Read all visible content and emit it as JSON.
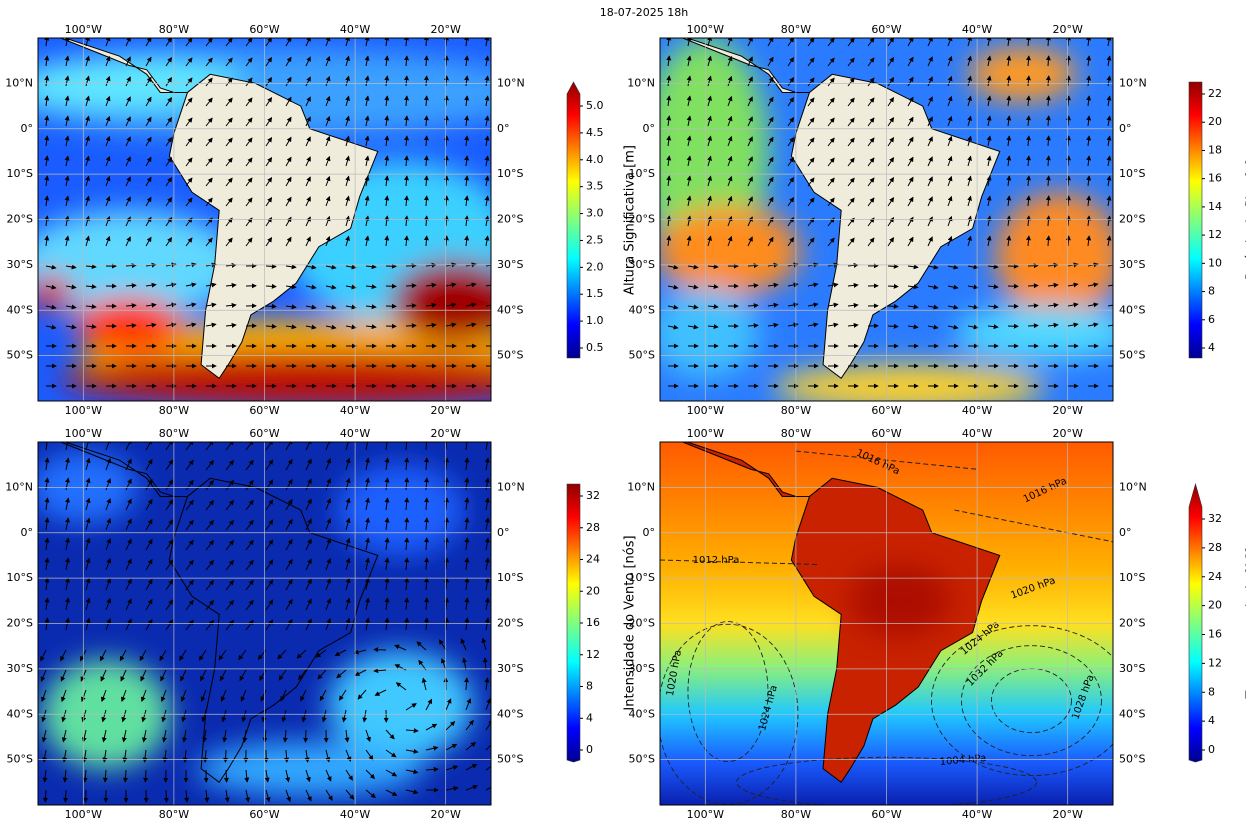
{
  "title": "18-07-2025 18h",
  "lon_labels": [
    "100°W",
    "80°W",
    "60°W",
    "40°W",
    "20°W"
  ],
  "lat_labels": [
    "10°N",
    "0°",
    "10°S",
    "20°S",
    "30°S",
    "40°S",
    "50°S"
  ],
  "panels": [
    {
      "colorbar": {
        "label": "Altura Significativa [m]",
        "ticks": [
          "0.5",
          "1.0",
          "1.5",
          "2.0",
          "2.5",
          "3.0",
          "3.5",
          "4.0",
          "4.5",
          "5.0"
        ]
      }
    },
    {
      "colorbar": {
        "label": "Período de Pico [s]",
        "ticks": [
          "4",
          "6",
          "8",
          "10",
          "12",
          "14",
          "16",
          "18",
          "20",
          "22"
        ]
      }
    },
    {
      "colorbar": {
        "label": "Intensidade do Vento [nós]",
        "ticks": [
          "0",
          "4",
          "8",
          "12",
          "16",
          "20",
          "24",
          "28",
          "32"
        ]
      }
    },
    {
      "colorbar": {
        "label": "Temperatura do Ar [°C]",
        "ticks": [
          "0",
          "4",
          "8",
          "12",
          "16",
          "20",
          "24",
          "28",
          "32"
        ]
      },
      "contour_labels": [
        "1016 hPa",
        "1016 hPa",
        "1012 hPa",
        "1020 hPa",
        "1024 hPa",
        "1032 hPa",
        "1028 hPa",
        "1020 hPa",
        "1024 hPa",
        "1004 hPa"
      ]
    }
  ]
}
